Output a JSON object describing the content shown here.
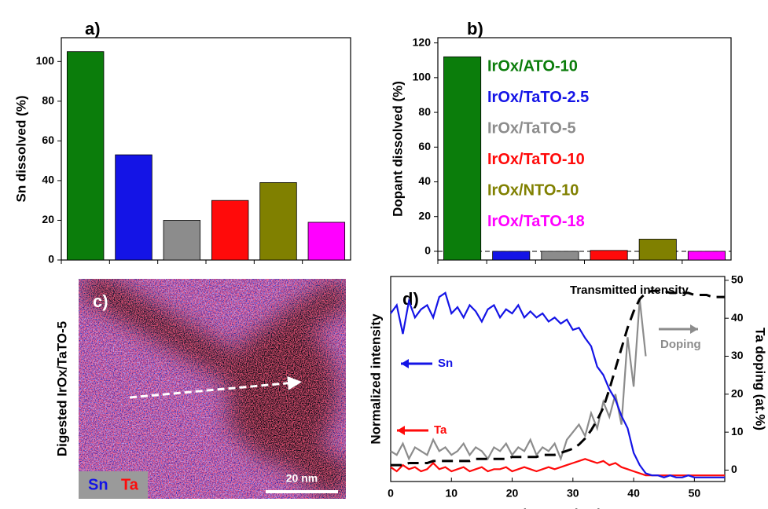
{
  "chart_data": [
    {
      "type": "bar",
      "panel_label": "a)",
      "ylabel": "Sn dissolved (%)",
      "categories": [
        null,
        null,
        null,
        null,
        null,
        null
      ],
      "values": [
        105,
        53,
        20,
        30,
        39,
        19
      ],
      "colors": [
        "#0b7d0b",
        "#1414e6",
        "#8c8c8c",
        "#ff0a0a",
        "#808000",
        "#ff00ff"
      ],
      "ylim": [
        0,
        112
      ],
      "yticks": [
        0,
        20,
        40,
        60,
        80,
        100
      ]
    },
    {
      "type": "bar",
      "panel_label": "b)",
      "ylabel": "Dopant dissolved (%)",
      "categories": [
        "IrOx/ATO-10",
        "IrOx/TaTO-2.5",
        "IrOx/TaTO-5",
        "IrOx/TaTO-10",
        "IrOx/NTO-10",
        "IrOx/TaTO-18"
      ],
      "values": [
        112,
        0,
        0,
        0.5,
        7,
        0
      ],
      "colors": [
        "#0b7d0b",
        "#1414e6",
        "#8c8c8c",
        "#ff0a0a",
        "#808000",
        "#ff00ff"
      ],
      "ylim": [
        -5,
        123
      ],
      "yticks": [
        0,
        20,
        40,
        60,
        80,
        100,
        120
      ],
      "zero_line": true,
      "legend": "upper right"
    },
    {
      "type": "line",
      "panel_label": "d)",
      "xlabel": "Distance (nm)",
      "ylabel": "Normalized intensity",
      "y2label": "Ta doping (at.%)",
      "x": [
        0,
        1,
        2,
        3,
        4,
        5,
        6,
        7,
        8,
        9,
        10,
        11,
        12,
        13,
        14,
        15,
        16,
        17,
        18,
        19,
        20,
        21,
        22,
        23,
        24,
        25,
        26,
        27,
        28,
        29,
        30,
        31,
        32,
        33,
        34,
        35,
        36,
        37,
        38,
        39,
        40,
        41,
        42,
        43,
        44,
        45,
        46,
        47,
        48,
        49,
        50,
        51,
        52,
        53,
        54,
        55
      ],
      "xlim": [
        0,
        55
      ],
      "xticks": [
        0,
        10,
        20,
        30,
        40,
        50
      ],
      "ylim": [
        0,
        1
      ],
      "y2lim": [
        -3,
        51
      ],
      "y2ticks": [
        0,
        10,
        20,
        30,
        40,
        50
      ],
      "series": [
        {
          "name": "Sn",
          "color": "#1414e6",
          "values": [
            0.82,
            0.86,
            0.72,
            0.88,
            0.8,
            0.84,
            0.86,
            0.8,
            0.9,
            0.92,
            0.82,
            0.85,
            0.8,
            0.86,
            0.83,
            0.78,
            0.84,
            0.86,
            0.8,
            0.84,
            0.82,
            0.86,
            0.8,
            0.83,
            0.8,
            0.82,
            0.78,
            0.8,
            0.77,
            0.79,
            0.74,
            0.75,
            0.7,
            0.66,
            0.56,
            0.52,
            0.45,
            0.4,
            0.32,
            0.26,
            0.14,
            0.08,
            0.04,
            0.03,
            0.03,
            0.02,
            0.03,
            0.02,
            0.02,
            0.03,
            0.02,
            0.02,
            0.02,
            0.02,
            0.02,
            0.02
          ]
        },
        {
          "name": "Ta",
          "color": "#ff0a0a",
          "values": [
            0.07,
            0.05,
            0.08,
            0.06,
            0.07,
            0.05,
            0.06,
            0.09,
            0.06,
            0.07,
            0.05,
            0.06,
            0.07,
            0.05,
            0.06,
            0.07,
            0.05,
            0.06,
            0.06,
            0.07,
            0.05,
            0.06,
            0.07,
            0.06,
            0.05,
            0.06,
            0.07,
            0.06,
            0.07,
            0.08,
            0.09,
            0.1,
            0.11,
            0.1,
            0.09,
            0.1,
            0.08,
            0.09,
            0.07,
            0.06,
            0.05,
            0.04,
            0.03,
            0.03,
            0.03,
            0.03,
            0.03,
            0.03,
            0.03,
            0.03,
            0.03,
            0.03,
            0.03,
            0.03,
            0.03,
            0.03
          ]
        },
        {
          "name": "Transmitted intensity",
          "color": "#000000",
          "linestyle": "dashed",
          "values": [
            0.08,
            0.08,
            0.08,
            0.09,
            0.09,
            0.09,
            0.09,
            0.1,
            0.1,
            0.1,
            0.1,
            0.1,
            0.1,
            0.1,
            0.11,
            0.11,
            0.11,
            0.11,
            0.11,
            0.11,
            0.12,
            0.12,
            0.12,
            0.12,
            0.12,
            0.13,
            0.13,
            0.13,
            0.14,
            0.15,
            0.16,
            0.18,
            0.21,
            0.25,
            0.3,
            0.36,
            0.45,
            0.55,
            0.65,
            0.75,
            0.83,
            0.89,
            0.92,
            0.93,
            0.93,
            0.93,
            0.92,
            0.92,
            0.92,
            0.92,
            0.91,
            0.91,
            0.91,
            0.9,
            0.9,
            0.9
          ]
        },
        {
          "name": "Doping",
          "color": "#8c8c8c",
          "axis": "y2",
          "values": [
            5,
            4,
            7,
            3,
            6,
            5,
            4,
            8,
            5,
            6,
            4,
            5,
            7,
            4,
            6,
            5,
            3,
            6,
            5,
            7,
            4,
            6,
            5,
            8,
            4,
            6,
            5,
            7,
            3,
            8,
            10,
            12,
            9,
            15,
            11,
            18,
            14,
            20,
            12,
            35,
            22,
            45,
            30,
            null,
            null,
            null,
            null,
            null,
            null,
            null,
            null,
            null,
            null,
            null,
            null,
            null
          ]
        }
      ]
    }
  ],
  "image_panel": {
    "panel_label": "c)",
    "side_label": "Digested IrOx/TaTO-5",
    "channels": [
      "Sn",
      "Ta"
    ],
    "scale_bar": "20 nm"
  }
}
